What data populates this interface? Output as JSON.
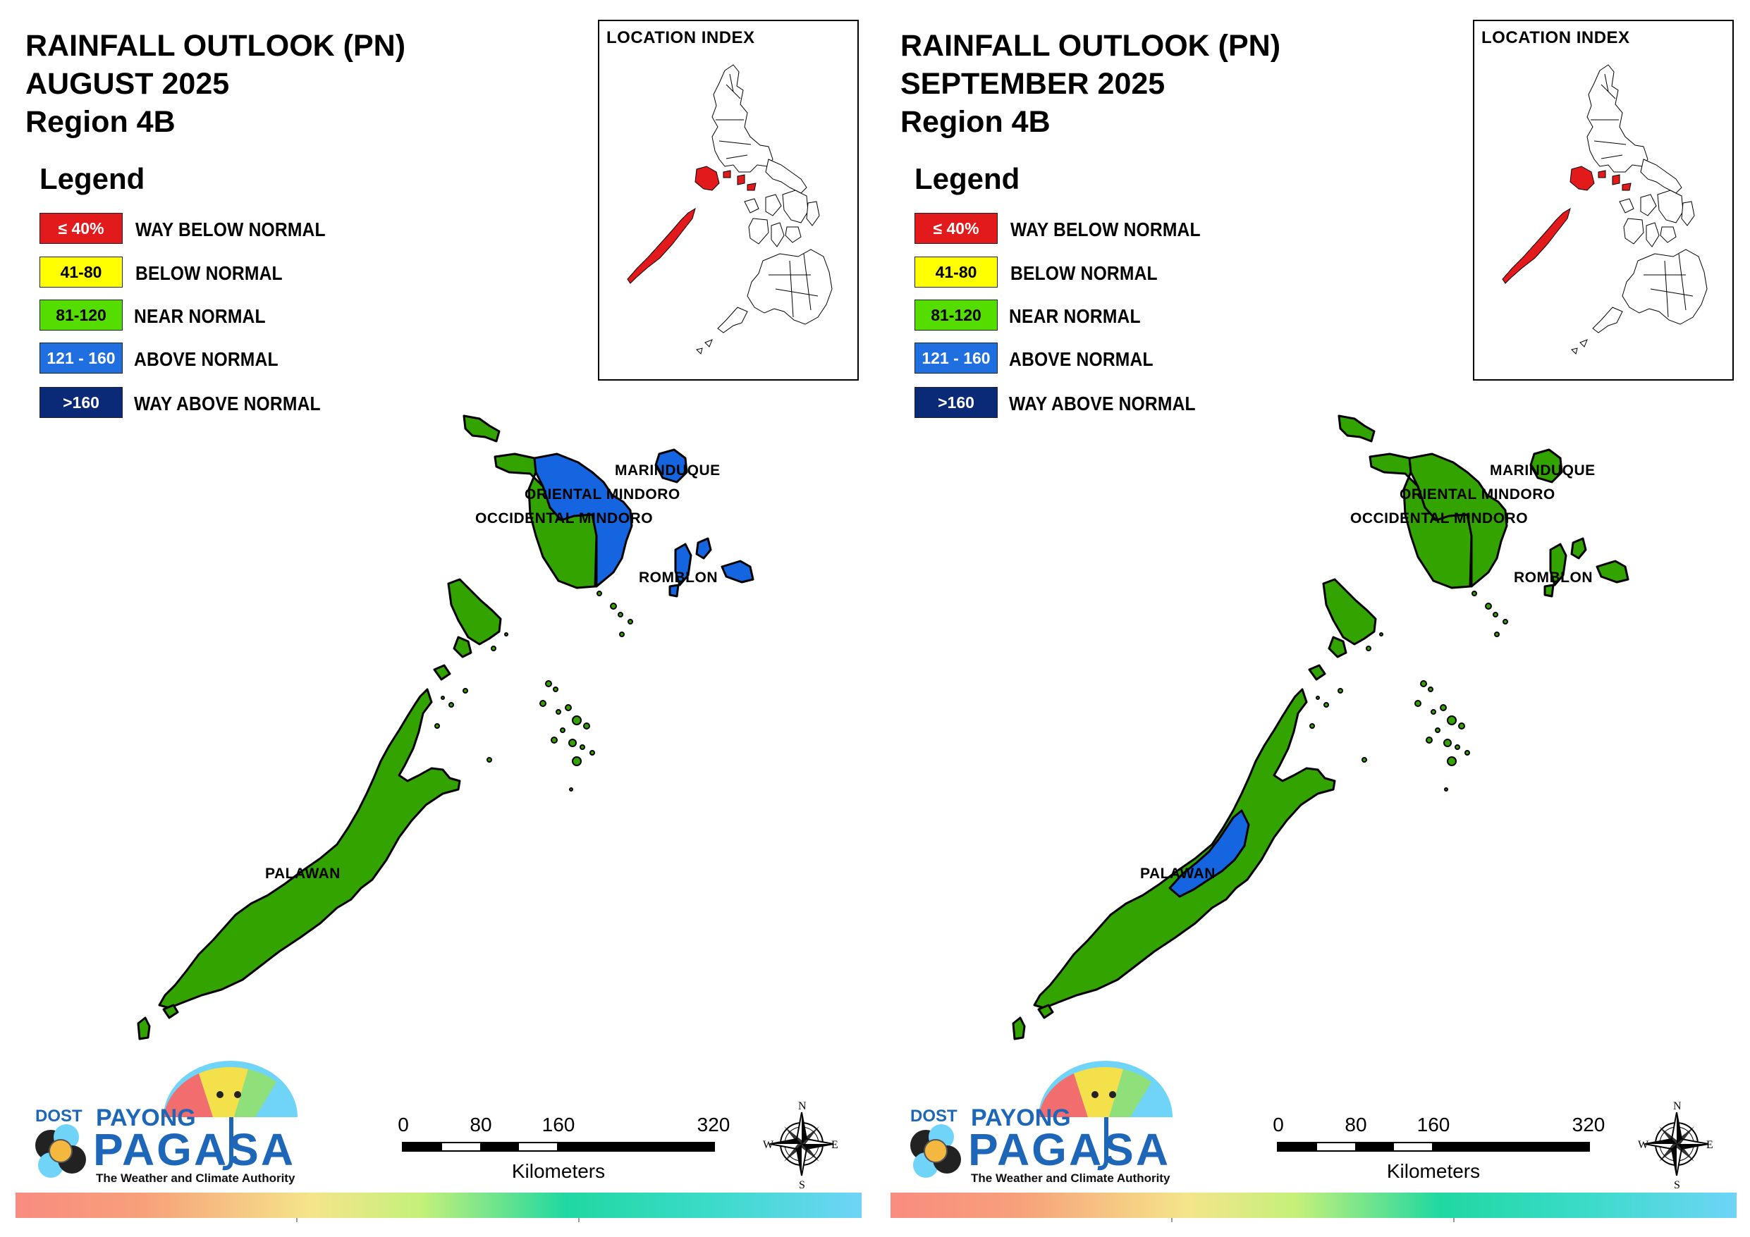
{
  "panels": [
    {
      "title_line1": "RAINFALL OUTLOOK (PN)",
      "title_line2": "AUGUST 2025",
      "title_line3": "Region 4B",
      "provinces": {
        "marinduque": "blue",
        "oriental_mindoro": "blue-north",
        "occidental_mindoro": "green",
        "romblon": "blue",
        "palawan": "green"
      }
    },
    {
      "title_line1": "RAINFALL OUTLOOK (PN)",
      "title_line2": "SEPTEMBER 2025",
      "title_line3": "Region 4B",
      "provinces": {
        "marinduque": "green",
        "oriental_mindoro": "green",
        "occidental_mindoro": "green",
        "romblon": "green",
        "palawan": "green-with-blue-central"
      }
    }
  ],
  "legend": {
    "title": "Legend",
    "items": [
      {
        "range": "≤ 40%",
        "label": "WAY BELOW NORMAL",
        "color": "#e31a1c",
        "text_color": "#ffffff"
      },
      {
        "range": "41-80",
        "label": "BELOW NORMAL",
        "color": "#ffff00",
        "text_color": "#000000"
      },
      {
        "range": "81-120",
        "label": "NEAR NORMAL",
        "color": "#55dd00",
        "text_color": "#000000"
      },
      {
        "range": "121 - 160",
        "label": "ABOVE NORMAL",
        "color": "#1f6fe0",
        "text_color": "#ffffff"
      },
      {
        "range": ">160",
        "label": "WAY ABOVE NORMAL",
        "color": "#0a2a78",
        "text_color": "#ffffff"
      }
    ]
  },
  "inset": {
    "title": "LOCATION INDEX"
  },
  "province_labels": {
    "marinduque": "MARINDUQUE",
    "oriental_mindoro": "ORIENTAL MINDORO",
    "occidental_mindoro": "OCCIDENTAL MINDORO",
    "romblon": "ROMBLON",
    "palawan": "PALAWAN"
  },
  "scale": {
    "ticks": [
      "0",
      "80",
      "160",
      "320"
    ],
    "unit": "Kilometers"
  },
  "compass": {
    "n": "N",
    "s": "S",
    "e": "E",
    "w": "W"
  },
  "logo": {
    "dost": "DOST",
    "payong": "PAYONG",
    "pagasa": "PAGASA",
    "tagline": "The Weather and Climate Authority"
  },
  "colors": {
    "near_normal_map": "#33a300",
    "above_normal_map": "#1565e0",
    "inset_highlight": "#e31a1c"
  }
}
